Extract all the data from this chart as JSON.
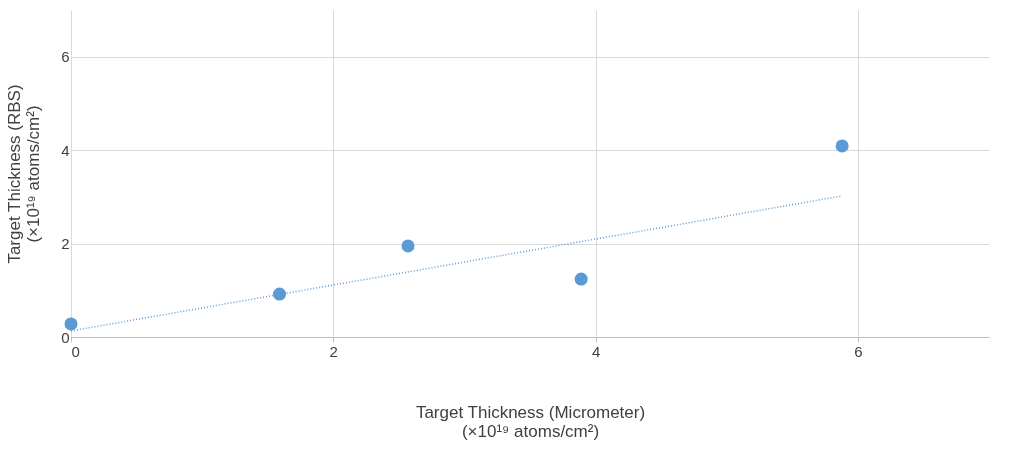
{
  "chart_data": {
    "type": "scatter",
    "xlabel": "Target Thickness (Micrometer)\n(×10¹⁹ atoms/cm²)",
    "ylabel": "Target Thickness (RBS)\n(×10¹⁹ atoms/cm²)",
    "xlim": [
      0,
      7
    ],
    "ylim": [
      0,
      7
    ],
    "xticks": [
      0,
      2,
      4,
      6
    ],
    "yticks": [
      0,
      2,
      4,
      6
    ],
    "grid": true,
    "series": [
      {
        "color": "#5b9bd5",
        "marker": "circle",
        "x": [
          0,
          1.59,
          2.57,
          3.89,
          5.88
        ],
        "values": [
          0.28,
          0.92,
          1.95,
          1.24,
          4.09
        ]
      },
      {
        "type": "line",
        "color": "#5b9bd5",
        "line_style": "dotted",
        "marker": "none",
        "x": [
          0,
          5.88
        ],
        "values": [
          0.13,
          3.02
        ]
      }
    ]
  }
}
